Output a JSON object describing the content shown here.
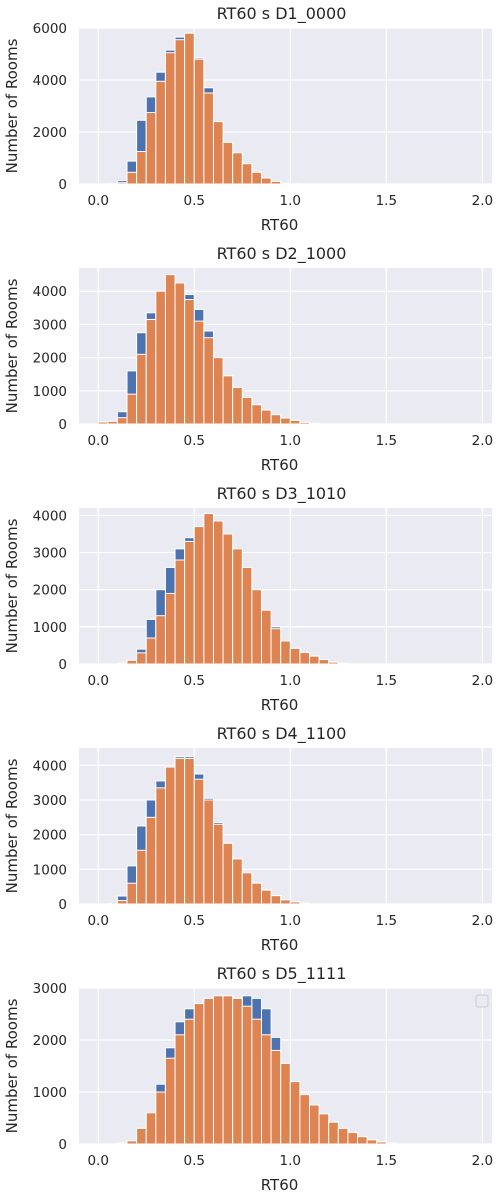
{
  "chart_data": [
    {
      "type": "bar",
      "title": "RT60 s D1_0000",
      "xlabel": "RT60",
      "ylabel": "Number of Rooms",
      "xlim": [
        -0.1,
        2.05
      ],
      "ylim": [
        0,
        6000
      ],
      "xticks": [
        "0.0",
        "0.5",
        "1.0",
        "1.5",
        "2.0"
      ],
      "yticks": [
        "0",
        "2000",
        "4000",
        "6000"
      ],
      "grid": true,
      "bin_start": 0.0,
      "bin_width": 0.05,
      "series": [
        {
          "color": "#4c72b0",
          "values": [
            0,
            0,
            130,
            880,
            2450,
            3350,
            4300,
            5150,
            5650,
            5800,
            4850,
            3700,
            2350,
            1580,
            1000,
            700,
            450,
            200,
            70,
            20,
            0
          ]
        },
        {
          "color": "#dd8452",
          "values": [
            0,
            10,
            50,
            450,
            1250,
            2750,
            3950,
            5050,
            5550,
            5800,
            4800,
            3500,
            2400,
            1600,
            1200,
            780,
            450,
            230,
            100,
            30,
            10
          ]
        }
      ]
    },
    {
      "type": "bar",
      "title": "RT60 s D2_1000",
      "xlabel": "RT60",
      "ylabel": "Number of Rooms",
      "xlim": [
        -0.1,
        2.05
      ],
      "ylim": [
        0,
        4700
      ],
      "xticks": [
        "0.0",
        "0.5",
        "1.0",
        "1.5",
        "2.0"
      ],
      "yticks": [
        "0",
        "1000",
        "2000",
        "3000",
        "4000"
      ],
      "grid": true,
      "bin_start": 0.0,
      "bin_width": 0.05,
      "series": [
        {
          "color": "#4c72b0",
          "values": [
            10,
            40,
            370,
            1600,
            2750,
            3350,
            4000,
            4400,
            4250,
            3900,
            3450,
            2800,
            2000,
            1450,
            1100,
            800,
            580,
            420,
            280,
            180,
            110,
            50,
            20
          ]
        },
        {
          "color": "#dd8452",
          "values": [
            60,
            80,
            190,
            900,
            2100,
            3150,
            4000,
            4500,
            4250,
            3750,
            3100,
            2600,
            2000,
            1450,
            1100,
            800,
            580,
            420,
            280,
            180,
            110,
            50,
            20
          ]
        }
      ]
    },
    {
      "type": "bar",
      "title": "RT60 s D3_1010",
      "xlabel": "RT60",
      "ylabel": "Number of Rooms",
      "xlim": [
        -0.1,
        2.05
      ],
      "ylim": [
        0,
        4200
      ],
      "xticks": [
        "0.0",
        "0.5",
        "1.0",
        "1.5",
        "2.0"
      ],
      "yticks": [
        "0",
        "1000",
        "2000",
        "3000",
        "4000"
      ],
      "grid": true,
      "bin_start": 0.0,
      "bin_width": 0.05,
      "series": [
        {
          "color": "#4c72b0",
          "values": [
            0,
            0,
            20,
            100,
            400,
            1200,
            2000,
            2600,
            3100,
            3400,
            3700,
            4050,
            3850,
            3450,
            2600,
            2200,
            2000,
            1450,
            1000,
            620,
            420,
            310,
            210,
            120,
            50,
            20
          ]
        },
        {
          "color": "#dd8452",
          "values": [
            0,
            0,
            20,
            100,
            300,
            700,
            1300,
            1900,
            2800,
            3300,
            3700,
            4050,
            3850,
            3500,
            3100,
            2600,
            2000,
            1450,
            950,
            620,
            420,
            310,
            210,
            120,
            50,
            20
          ]
        }
      ]
    },
    {
      "type": "bar",
      "title": "RT60 s D4_1100",
      "xlabel": "RT60",
      "ylabel": "Number of Rooms",
      "xlim": [
        -0.1,
        2.05
      ],
      "ylim": [
        0,
        4500
      ],
      "xticks": [
        "0.0",
        "0.5",
        "1.0",
        "1.5",
        "2.0"
      ],
      "yticks": [
        "0",
        "1000",
        "2000",
        "3000",
        "4000"
      ],
      "grid": true,
      "bin_start": 0.0,
      "bin_width": 0.05,
      "series": [
        {
          "color": "#4c72b0",
          "values": [
            0,
            0,
            230,
            1100,
            2250,
            3000,
            3550,
            3950,
            4250,
            4250,
            3750,
            3050,
            2350,
            1750,
            1300,
            900,
            600,
            420,
            240,
            120,
            60,
            20
          ]
        },
        {
          "color": "#dd8452",
          "values": [
            0,
            10,
            100,
            600,
            1550,
            2500,
            3350,
            3950,
            4200,
            4200,
            3600,
            3000,
            2300,
            1750,
            1300,
            900,
            600,
            400,
            240,
            120,
            60,
            20
          ]
        }
      ]
    },
    {
      "type": "bar",
      "title": "RT60 s D5_1111",
      "xlabel": "RT60",
      "ylabel": "Number of Rooms",
      "xlim": [
        -0.1,
        2.05
      ],
      "ylim": [
        0,
        3000
      ],
      "xticks": [
        "0.0",
        "0.5",
        "1.0",
        "1.5",
        "2.0"
      ],
      "yticks": [
        "0",
        "1000",
        "2000",
        "3000"
      ],
      "grid": true,
      "legend": "top-right",
      "bin_start": 0.0,
      "bin_width": 0.05,
      "series": [
        {
          "color": "#4c72b0",
          "values": [
            0,
            0,
            20,
            60,
            300,
            600,
            1150,
            1850,
            2350,
            2600,
            2700,
            2800,
            2850,
            2850,
            2800,
            2850,
            2800,
            2600,
            2050,
            1550,
            1200,
            950,
            750,
            580,
            420,
            300,
            220,
            140,
            80,
            40,
            20
          ]
        },
        {
          "color": "#dd8452",
          "values": [
            0,
            0,
            20,
            60,
            300,
            600,
            1000,
            1650,
            2100,
            2400,
            2700,
            2800,
            2850,
            2850,
            2800,
            2650,
            2400,
            2100,
            1800,
            1550,
            1200,
            950,
            750,
            580,
            420,
            300,
            220,
            140,
            80,
            40,
            20
          ]
        }
      ]
    }
  ]
}
